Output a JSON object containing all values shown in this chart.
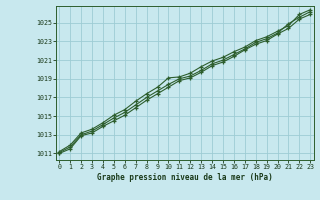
{
  "title": "Graphe pression niveau de la mer (hPa)",
  "background_color": "#c8e8ee",
  "plot_bg_color": "#c8e8ee",
  "grid_color": "#9eccd4",
  "line_color": "#2d5e2d",
  "marker_color": "#2d5e2d",
  "tick_color": "#1a3a1a",
  "spine_color": "#2d5e2d",
  "xlim": [
    -0.3,
    23.3
  ],
  "ylim": [
    1010.3,
    1026.8
  ],
  "yticks": [
    1011,
    1013,
    1015,
    1017,
    1019,
    1021,
    1023,
    1025
  ],
  "xticks": [
    0,
    1,
    2,
    3,
    4,
    5,
    6,
    7,
    8,
    9,
    10,
    11,
    12,
    13,
    14,
    15,
    16,
    17,
    18,
    19,
    20,
    21,
    22,
    23
  ],
  "series": [
    [
      1011.2,
      1011.9,
      1013.2,
      1013.6,
      1014.3,
      1015.1,
      1015.7,
      1016.6,
      1017.4,
      1018.1,
      1019.1,
      1019.2,
      1019.6,
      1020.3,
      1020.9,
      1021.3,
      1021.9,
      1022.4,
      1023.1,
      1023.5,
      1024.1,
      1024.7,
      1025.9,
      1026.4
    ],
    [
      1011.0,
      1011.5,
      1012.9,
      1013.2,
      1013.9,
      1014.5,
      1015.1,
      1015.9,
      1016.7,
      1017.4,
      1018.1,
      1018.8,
      1019.1,
      1019.7,
      1020.4,
      1020.8,
      1021.4,
      1022.1,
      1022.7,
      1023.1,
      1023.8,
      1024.4,
      1025.4,
      1025.9
    ],
    [
      1011.1,
      1011.7,
      1013.0,
      1013.4,
      1014.1,
      1014.8,
      1015.4,
      1016.2,
      1017.0,
      1017.7,
      1018.4,
      1019.0,
      1019.3,
      1019.9,
      1020.6,
      1021.0,
      1021.6,
      1022.2,
      1022.9,
      1023.3,
      1023.9,
      1024.9,
      1025.6,
      1026.2
    ]
  ]
}
